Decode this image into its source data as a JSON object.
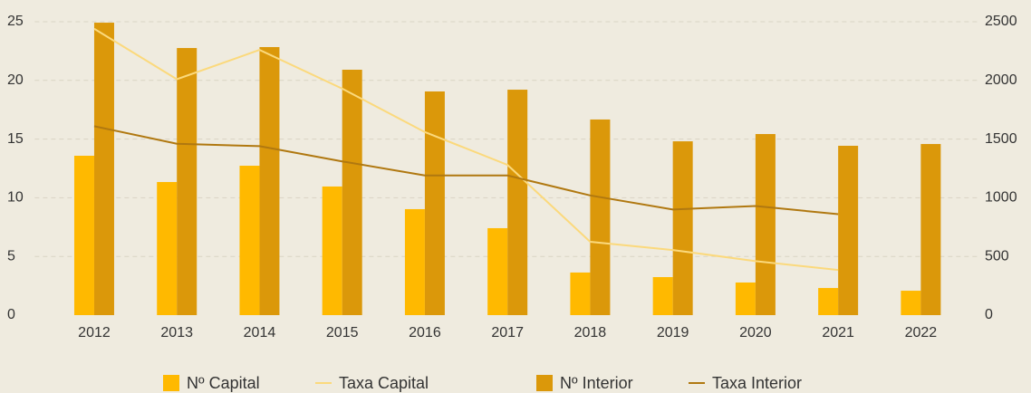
{
  "chart_data": {
    "type": "bar",
    "categories": [
      "2012",
      "2013",
      "2014",
      "2015",
      "2016",
      "2017",
      "2018",
      "2019",
      "2020",
      "2021",
      "2022"
    ],
    "series": [
      {
        "name": "Nº Capital",
        "type": "bar",
        "axis": "y2",
        "color": "#ffb900",
        "values": [
          1358,
          1134,
          1273,
          1096,
          903,
          741,
          363,
          324,
          278,
          231,
          208
        ]
      },
      {
        "name": "Taxa Capital",
        "type": "line",
        "axis": "y",
        "color": "#fbd97c",
        "values": [
          24.4,
          20.1,
          22.6,
          19.3,
          15.6,
          12.8,
          6.25,
          5.55,
          4.6,
          3.85,
          null
        ]
      },
      {
        "name": "Nº Interior",
        "type": "bar",
        "axis": "y2",
        "color": "#db980a",
        "values": [
          2492,
          2276,
          2284,
          2091,
          1906,
          1921,
          1667,
          1481,
          1543,
          1443,
          1458
        ]
      },
      {
        "name": "Taxa Interior",
        "type": "line",
        "axis": "y",
        "color": "#b07810",
        "values": [
          16.1,
          14.6,
          14.4,
          13.1,
          11.9,
          11.9,
          10.2,
          9.0,
          9.3,
          8.6,
          null
        ]
      }
    ],
    "ylim": [
      0,
      25
    ],
    "yticks": [
      0,
      5,
      10,
      15,
      20,
      25
    ],
    "y2lim": [
      0,
      2500
    ],
    "y2ticks": [
      0,
      500,
      1000,
      1500,
      2000,
      2500
    ],
    "grid": true,
    "legend": "bottom"
  }
}
